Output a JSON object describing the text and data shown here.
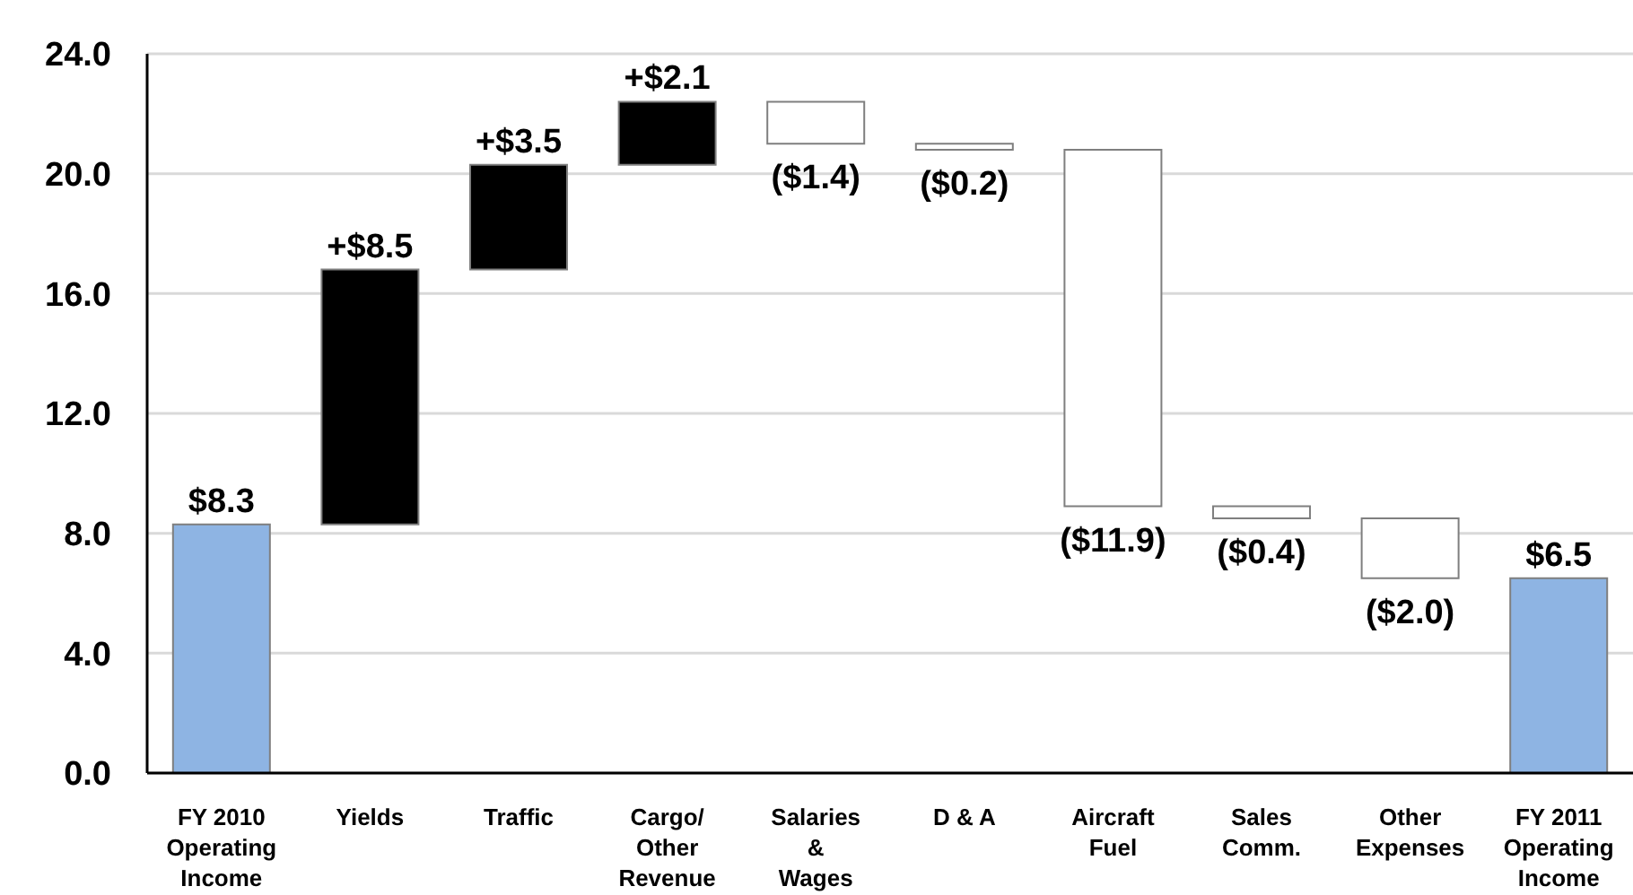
{
  "chart_data": {
    "type": "bar",
    "categories": [
      "FY 2010\nOperating\nIncome",
      "Yields",
      "Traffic",
      "Cargo/\nOther\nRevenue",
      "Salaries\n&\nWages",
      "D & A",
      "Aircraft\nFuel",
      "Sales\nComm.",
      "Other\nExpenses",
      "FY 2011\nOperating\nIncome"
    ],
    "values": [
      8.3,
      8.5,
      3.5,
      2.1,
      -1.4,
      -0.2,
      -11.9,
      -0.4,
      -2.0,
      6.5
    ],
    "base": [
      0,
      8.3,
      16.8,
      20.3,
      22.4,
      21.0,
      20.8,
      8.9,
      8.5,
      0
    ],
    "colors": [
      "#8eb4e3",
      "#000000",
      "#000000",
      "#000000",
      "#ffffff",
      "#ffffff",
      "#ffffff",
      "#ffffff",
      "#ffffff",
      "#8eb4e3"
    ],
    "value_labels": [
      "$8.3",
      "+$8.5",
      "+$3.5",
      "+$2.1",
      "($1.4)",
      "($0.2)",
      "($11.9)",
      "($0.4)",
      "($2.0)",
      "$6.5"
    ],
    "ylim": [
      0,
      24
    ],
    "yticks": [
      {
        "value": 0,
        "label": "0.0"
      },
      {
        "value": 4,
        "label": "4.0"
      },
      {
        "value": 8,
        "label": "8.0"
      },
      {
        "value": 12,
        "label": "12.0"
      },
      {
        "value": 16,
        "label": "16.0"
      },
      {
        "value": 20,
        "label": "20.0"
      },
      {
        "value": 24,
        "label": "24.0"
      }
    ],
    "grid": "y"
  }
}
